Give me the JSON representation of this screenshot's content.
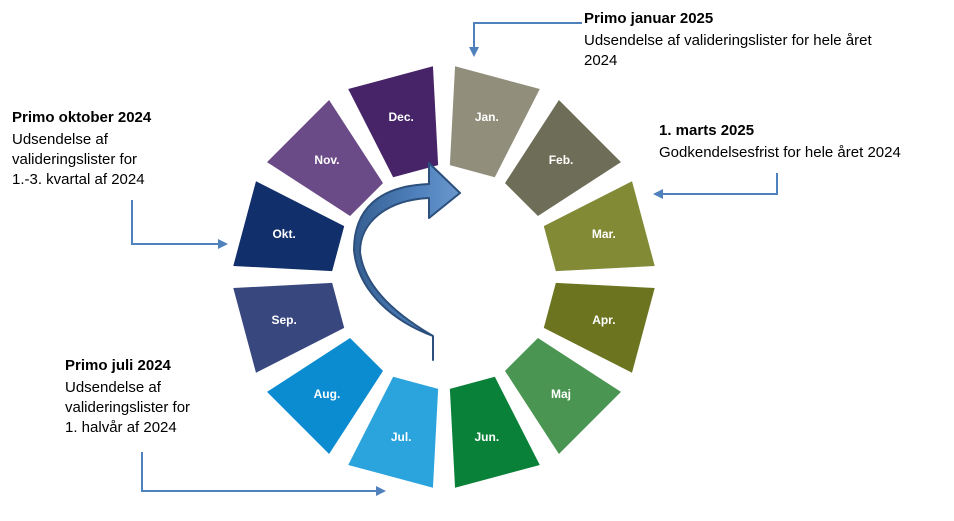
{
  "months": [
    {
      "label": "Jan.",
      "color": "#918e7c"
    },
    {
      "label": "Feb.",
      "color": "#6d6d58"
    },
    {
      "label": "Mar.",
      "color": "#828a36"
    },
    {
      "label": "Apr.",
      "color": "#6c7420"
    },
    {
      "label": "Maj",
      "color": "#4b9552"
    },
    {
      "label": "Jun.",
      "color": "#0a8138"
    },
    {
      "label": "Jul.",
      "color": "#2ba3dd"
    },
    {
      "label": "Aug.",
      "color": "#0b8bd0"
    },
    {
      "label": "Sep.",
      "color": "#39477f"
    },
    {
      "label": "Okt.",
      "color": "#112f6b"
    },
    {
      "label": "Nov.",
      "color": "#6b4a88"
    },
    {
      "label": "Dec.",
      "color": "#462467"
    }
  ],
  "colors": {
    "arrow_fill": "#4f81bd",
    "arrow_stroke": "#2c4f7c",
    "connector": "#4f81bd"
  },
  "callouts": {
    "januar": {
      "heading": "Primo januar 2025",
      "line1": "Udsendelse af valideringslister for hele året",
      "line2": "2024"
    },
    "marts": {
      "heading": "1. marts 2025",
      "line1": "Godkendelsesfrist for hele året 2024"
    },
    "oktober": {
      "heading": "Primo oktober 2024",
      "line1": "Udsendelse af",
      "line2": "valideringslister for",
      "line3": "1.-3. kvartal af 2024"
    },
    "juli": {
      "heading": "Primo juli 2024",
      "line1": "Udsendelse af",
      "line2": "valideringslister for",
      "line3": "1. halvår af 2024"
    }
  }
}
